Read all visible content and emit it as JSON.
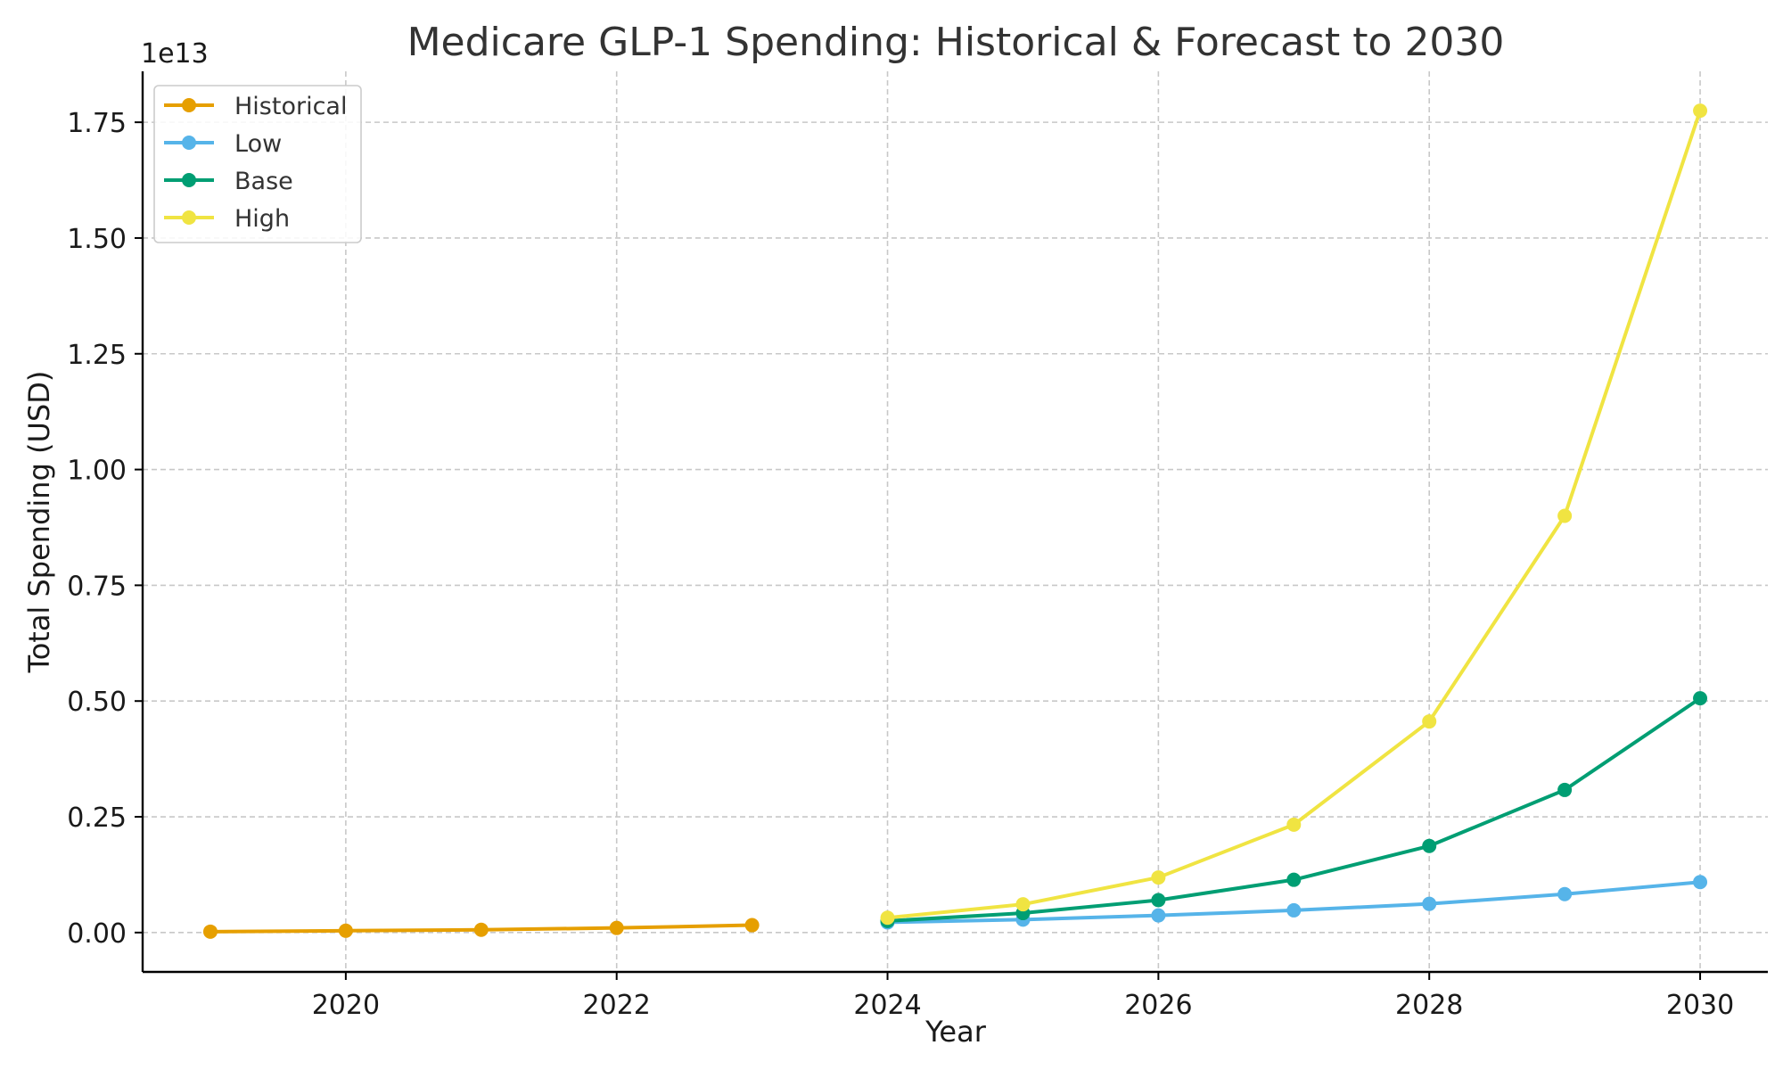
{
  "chart_data": {
    "type": "line",
    "title": "Medicare GLP-1 Spending: Historical & Forecast to 2030",
    "xlabel": "Year",
    "ylabel": "Total Spending (USD)",
    "y_offset_text": "1e13",
    "xlim": [
      2018.5,
      2030.5
    ],
    "ylim": [
      -0.085,
      1.86
    ],
    "y_scale_multiplier": 10000000000000.0,
    "x_ticks": [
      2020,
      2022,
      2024,
      2026,
      2028,
      2030
    ],
    "x_tick_labels": [
      "2020",
      "2022",
      "2024",
      "2026",
      "2028",
      "2030"
    ],
    "y_ticks": [
      0,
      0.25,
      0.5,
      0.75,
      1.0,
      1.25,
      1.5,
      1.75
    ],
    "y_tick_labels": [
      "0.00",
      "0.25",
      "0.50",
      "0.75",
      "1.00",
      "1.25",
      "1.50",
      "1.75"
    ],
    "grid": true,
    "legend_position": "top-left",
    "series": [
      {
        "name": "Historical",
        "color": "#E69F00",
        "x": [
          2019,
          2020,
          2021,
          2022,
          2023
        ],
        "y": [
          0.002,
          0.004,
          0.006,
          0.01,
          0.016
        ]
      },
      {
        "name": "Low",
        "color": "#56B4E9",
        "x": [
          2024,
          2025,
          2026,
          2027,
          2028,
          2029,
          2030
        ],
        "y": [
          0.022,
          0.028,
          0.037,
          0.048,
          0.062,
          0.083,
          0.109
        ]
      },
      {
        "name": "Base",
        "color": "#009E73",
        "x": [
          2024,
          2025,
          2026,
          2027,
          2028,
          2029,
          2030
        ],
        "y": [
          0.025,
          0.042,
          0.07,
          0.114,
          0.187,
          0.308,
          0.506
        ]
      },
      {
        "name": "High",
        "color": "#F0E442",
        "x": [
          2024,
          2025,
          2026,
          2027,
          2028,
          2029,
          2030
        ],
        "y": [
          0.032,
          0.061,
          0.119,
          0.233,
          0.456,
          0.9,
          1.775
        ]
      }
    ]
  }
}
